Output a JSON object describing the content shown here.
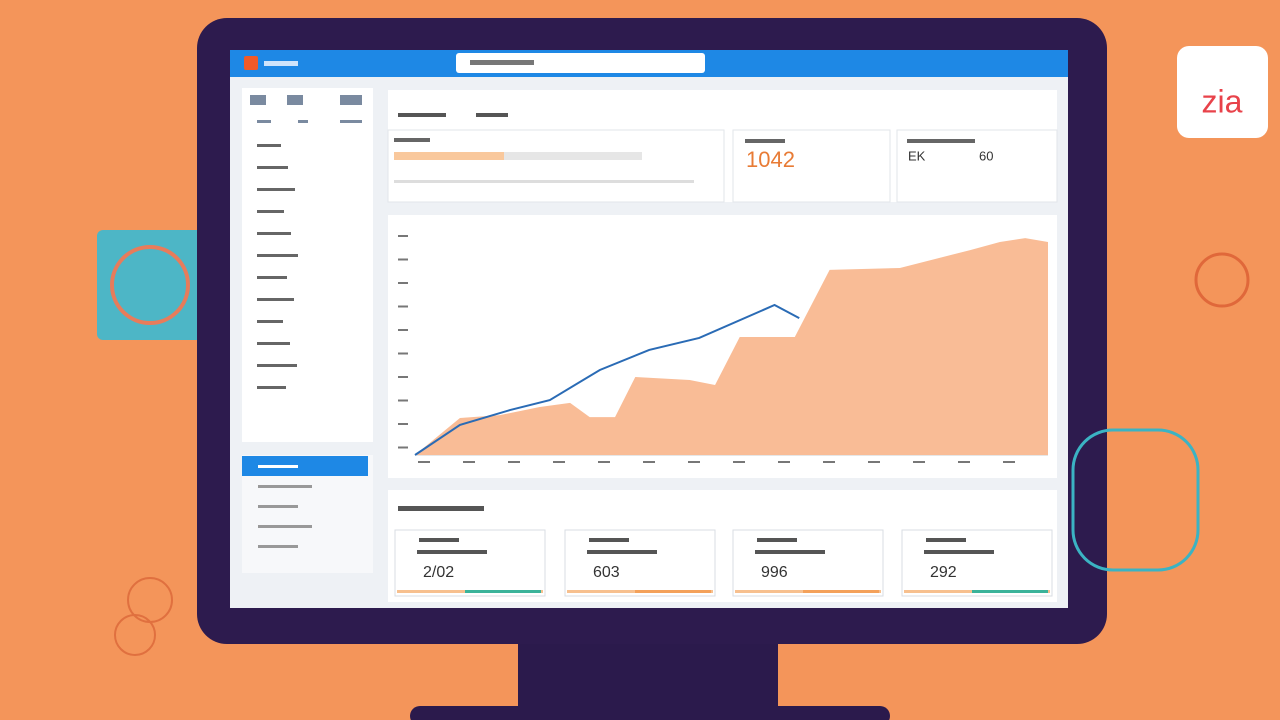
{
  "header": {
    "logo": "zia"
  },
  "kpis": {
    "primary": "1042",
    "secondary": [
      "EK",
      "60"
    ]
  },
  "stats": [
    "2/02",
    "603",
    "996",
    "292"
  ],
  "chart_data": {
    "type": "line",
    "xlim": [
      0,
      100
    ],
    "ylim": [
      0,
      100
    ],
    "series": [
      {
        "color": "#f9bc96",
        "area": true,
        "x": [
          0,
          7.1,
          13.4,
          19.7,
          24.5,
          27.6,
          31.6,
          34.8,
          43.4,
          47.4,
          51.3,
          60,
          65.5,
          76.6,
          87.7,
          92.4,
          96.4,
          100
        ],
        "values": [
          0,
          17,
          18.3,
          22,
          23.9,
          17.4,
          17.4,
          35.8,
          34.4,
          32.1,
          54.1,
          54.1,
          84.9,
          85.8,
          94,
          97.7,
          99.5,
          97.7
        ]
      },
      {
        "color": "#2a6bb5",
        "area": false,
        "x": [
          0,
          7.1,
          15,
          21.3,
          29.2,
          37,
          44.9,
          56.8,
          60.7
        ],
        "values": [
          0,
          13.8,
          20.6,
          25.2,
          39,
          48.2,
          53.7,
          68.8,
          62.8
        ]
      }
    ]
  }
}
